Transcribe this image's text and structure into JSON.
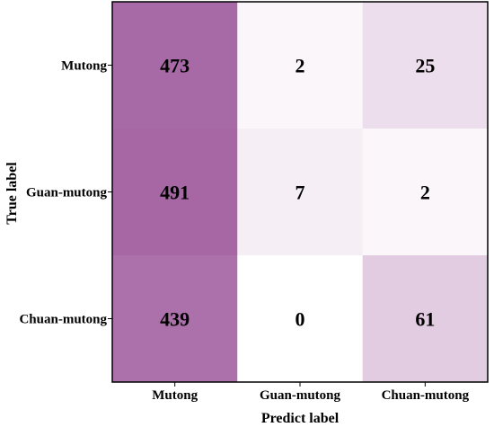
{
  "chart_data": {
    "type": "heatmap",
    "title": "",
    "xlabel": "Predict label",
    "ylabel": "True label",
    "x_categories": [
      "Mutong",
      "Guan-mutong",
      "Chuan-mutong"
    ],
    "y_categories": [
      "Mutong",
      "Guan-mutong",
      "Chuan-mutong"
    ],
    "values": [
      [
        473,
        2,
        25
      ],
      [
        491,
        7,
        2
      ],
      [
        439,
        0,
        61
      ]
    ],
    "colorscale": [
      "#ffffff",
      "#a666a4"
    ],
    "grid": false
  }
}
